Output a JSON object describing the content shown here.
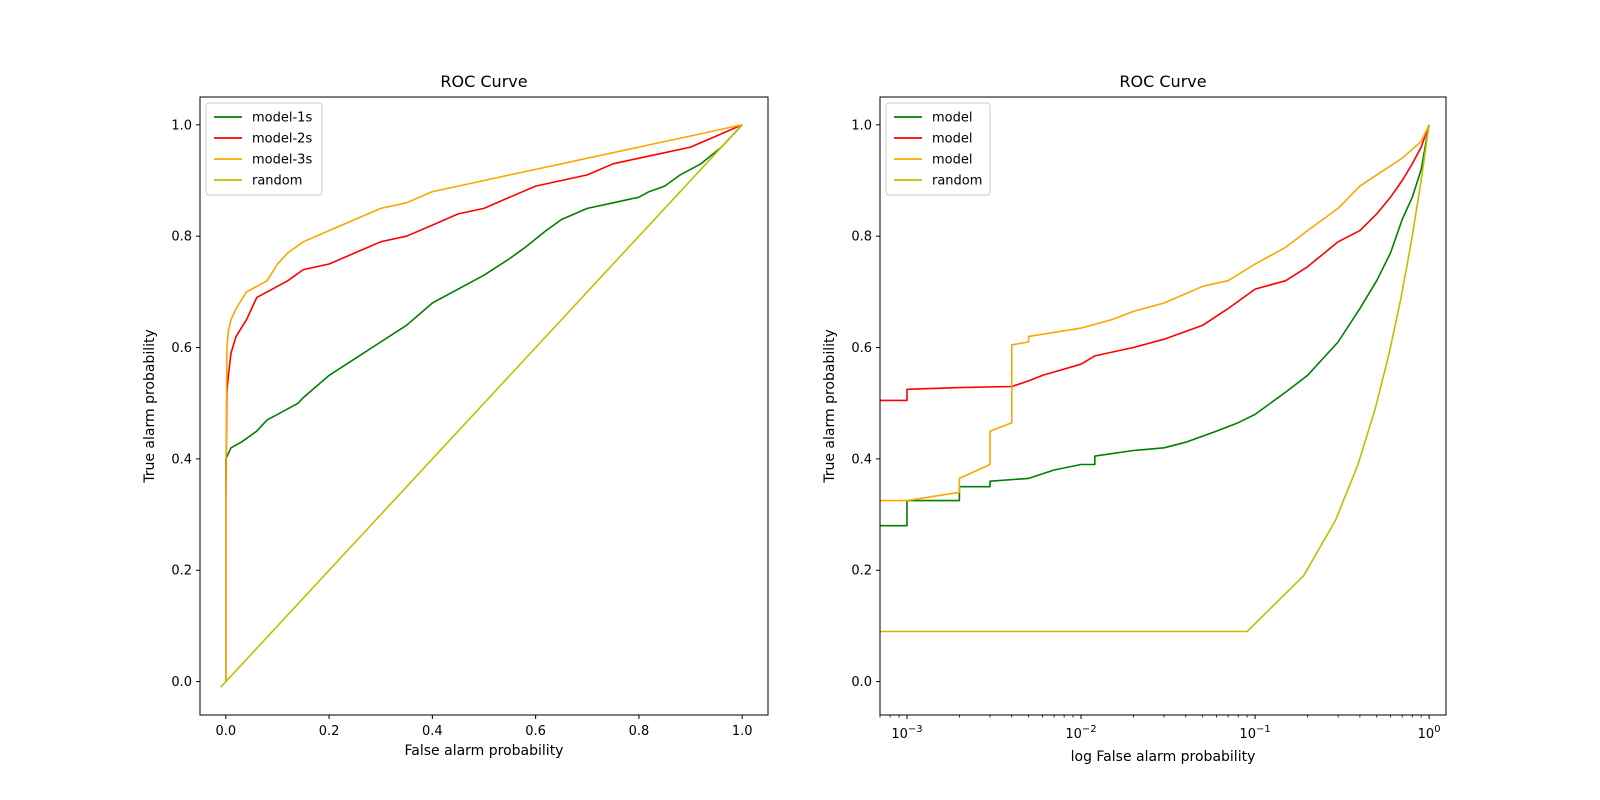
{
  "chart_data": [
    {
      "type": "line",
      "title": "ROC Curve",
      "xlabel": "False alarm probability",
      "ylabel": "True alarm probability",
      "xscale": "linear",
      "xlim": [
        -0.05,
        1.05
      ],
      "ylim": [
        -0.06,
        1.05
      ],
      "xticks": [
        0.0,
        0.2,
        0.4,
        0.6,
        0.8,
        1.0
      ],
      "xtick_labels": [
        "0.0",
        "0.2",
        "0.4",
        "0.6",
        "0.8",
        "1.0"
      ],
      "yticks": [
        0.0,
        0.2,
        0.4,
        0.6,
        0.8,
        1.0
      ],
      "ytick_labels": [
        "0.0",
        "0.2",
        "0.4",
        "0.6",
        "0.8",
        "1.0"
      ],
      "legend_position": "upper-left",
      "series": [
        {
          "name": "model-1s",
          "color": "#008000",
          "x": [
            0,
            0,
            0,
            0,
            0.005,
            0.01,
            0.03,
            0.06,
            0.08,
            0.1,
            0.14,
            0.15,
            0.2,
            0.25,
            0.3,
            0.35,
            0.4,
            0.45,
            0.5,
            0.55,
            0.58,
            0.62,
            0.65,
            0.7,
            0.75,
            0.8,
            0.82,
            0.85,
            0.88,
            0.92,
            0.96,
            1.0
          ],
          "y": [
            0,
            0.33,
            0.37,
            0.4,
            0.41,
            0.42,
            0.43,
            0.45,
            0.47,
            0.48,
            0.5,
            0.51,
            0.55,
            0.58,
            0.61,
            0.64,
            0.68,
            0.705,
            0.73,
            0.76,
            0.78,
            0.81,
            0.83,
            0.85,
            0.86,
            0.87,
            0.88,
            0.89,
            0.91,
            0.93,
            0.96,
            1.0
          ]
        },
        {
          "name": "model-2s",
          "color": "#ff0000",
          "x": [
            0,
            0,
            0.002,
            0.005,
            0.01,
            0.02,
            0.04,
            0.06,
            0.08,
            0.1,
            0.12,
            0.15,
            0.2,
            0.25,
            0.3,
            0.35,
            0.4,
            0.45,
            0.5,
            0.55,
            0.6,
            0.65,
            0.7,
            0.75,
            0.8,
            0.85,
            0.9,
            0.95,
            1.0
          ],
          "y": [
            0,
            0.33,
            0.52,
            0.55,
            0.59,
            0.62,
            0.65,
            0.69,
            0.7,
            0.71,
            0.72,
            0.74,
            0.75,
            0.77,
            0.79,
            0.8,
            0.82,
            0.84,
            0.85,
            0.87,
            0.89,
            0.9,
            0.91,
            0.93,
            0.94,
            0.95,
            0.96,
            0.98,
            1.0
          ]
        },
        {
          "name": "model-3s",
          "color": "#ffa500",
          "x": [
            0,
            0,
            0.002,
            0.005,
            0.01,
            0.02,
            0.04,
            0.06,
            0.08,
            0.1,
            0.12,
            0.15,
            0.2,
            0.25,
            0.3,
            0.35,
            0.4,
            0.45,
            0.5,
            0.55,
            0.6,
            0.65,
            0.7,
            0.75,
            0.8,
            0.85,
            0.9,
            0.95,
            1.0
          ],
          "y": [
            0,
            0.33,
            0.6,
            0.63,
            0.65,
            0.67,
            0.7,
            0.71,
            0.72,
            0.75,
            0.77,
            0.79,
            0.81,
            0.83,
            0.85,
            0.86,
            0.88,
            0.89,
            0.9,
            0.91,
            0.92,
            0.93,
            0.94,
            0.95,
            0.96,
            0.97,
            0.98,
            0.99,
            1.0
          ]
        },
        {
          "name": "random",
          "color": "#bfbf00",
          "x": [
            -0.01,
            1.0
          ],
          "y": [
            -0.01,
            1.0
          ]
        }
      ]
    },
    {
      "type": "line",
      "title": "ROC Curve",
      "xlabel": "log False alarm probability",
      "ylabel": "True alarm probability",
      "xscale": "log",
      "xlim": [
        0.0007,
        1.25
      ],
      "ylim": [
        -0.06,
        1.05
      ],
      "xticks": [
        0.001,
        0.01,
        0.1,
        1
      ],
      "xtick_labels": [
        {
          "base": "10",
          "exp": "−3"
        },
        {
          "base": "10",
          "exp": "−2"
        },
        {
          "base": "10",
          "exp": "−1"
        },
        {
          "base": "10",
          "exp": "0"
        }
      ],
      "yticks": [
        0.0,
        0.2,
        0.4,
        0.6,
        0.8,
        1.0
      ],
      "ytick_labels": [
        "0.0",
        "0.2",
        "0.4",
        "0.6",
        "0.8",
        "1.0"
      ],
      "legend_position": "upper-left",
      "series": [
        {
          "name": "model",
          "color": "#008000",
          "x": [
            0.0007,
            0.001,
            0.001,
            0.002,
            0.002,
            0.003,
            0.003,
            0.005,
            0.007,
            0.01,
            0.012,
            0.012,
            0.02,
            0.03,
            0.04,
            0.06,
            0.08,
            0.1,
            0.15,
            0.2,
            0.3,
            0.4,
            0.5,
            0.6,
            0.7,
            0.8,
            0.9,
            1.0
          ],
          "y": [
            0.28,
            0.28,
            0.325,
            0.325,
            0.35,
            0.35,
            0.36,
            0.365,
            0.38,
            0.39,
            0.39,
            0.405,
            0.415,
            0.42,
            0.43,
            0.45,
            0.465,
            0.48,
            0.52,
            0.55,
            0.61,
            0.67,
            0.72,
            0.77,
            0.83,
            0.87,
            0.92,
            1.0
          ]
        },
        {
          "name": "model",
          "color": "#ff0000",
          "x": [
            0.0007,
            0.001,
            0.001,
            0.002,
            0.004,
            0.005,
            0.006,
            0.01,
            0.012,
            0.02,
            0.03,
            0.05,
            0.07,
            0.1,
            0.15,
            0.2,
            0.3,
            0.4,
            0.5,
            0.6,
            0.7,
            0.8,
            0.9,
            1.0
          ],
          "y": [
            0.505,
            0.505,
            0.525,
            0.528,
            0.53,
            0.54,
            0.55,
            0.57,
            0.585,
            0.6,
            0.615,
            0.64,
            0.67,
            0.705,
            0.72,
            0.745,
            0.79,
            0.81,
            0.84,
            0.87,
            0.9,
            0.93,
            0.96,
            1.0
          ]
        },
        {
          "name": "model",
          "color": "#ffa500",
          "x": [
            0.0007,
            0.001,
            0.002,
            0.002,
            0.003,
            0.003,
            0.004,
            0.004,
            0.005,
            0.005,
            0.008,
            0.01,
            0.015,
            0.02,
            0.03,
            0.05,
            0.07,
            0.1,
            0.15,
            0.2,
            0.3,
            0.4,
            0.5,
            0.7,
            0.9,
            1.0
          ],
          "y": [
            0.325,
            0.325,
            0.34,
            0.365,
            0.39,
            0.45,
            0.465,
            0.605,
            0.61,
            0.62,
            0.63,
            0.635,
            0.65,
            0.665,
            0.68,
            0.71,
            0.72,
            0.75,
            0.78,
            0.81,
            0.85,
            0.89,
            0.91,
            0.94,
            0.97,
            1.0
          ]
        },
        {
          "name": "random",
          "color": "#bfbf00",
          "x": [
            0.0007,
            0.09,
            0.19,
            0.29,
            0.39,
            0.49,
            0.59,
            0.69,
            0.79,
            0.89,
            1.0
          ],
          "y": [
            0.09,
            0.09,
            0.19,
            0.29,
            0.39,
            0.49,
            0.59,
            0.69,
            0.79,
            0.89,
            1.0
          ]
        }
      ]
    }
  ]
}
